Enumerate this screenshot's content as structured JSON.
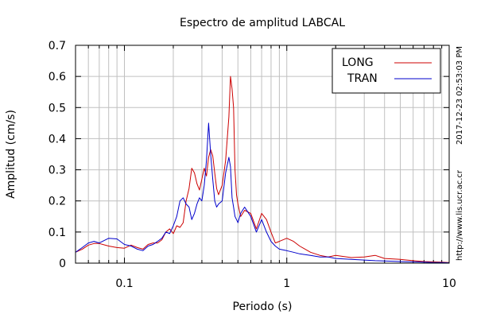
{
  "chart_data": {
    "type": "line",
    "title": "Espectro de amplitud LABCAL",
    "xlabel": "Periodo (s)",
    "ylabel": "Amplitud (cm/s)",
    "x_scale": "log",
    "xlim": [
      0.05,
      10
    ],
    "ylim": [
      0,
      0.7
    ],
    "grid": true,
    "legend": "top-right",
    "y_ticks": [
      "0",
      "0.1",
      "0.2",
      "0.3",
      "0.4",
      "0.5",
      "0.6",
      "0.7"
    ],
    "x_tick_values": [
      0.1,
      1,
      10
    ],
    "x_ticks": [
      "0.1",
      "1",
      "10"
    ],
    "timestamp": "2017-12-23 02:53:03 PM",
    "source_url": "http://www.lis.ucr.ac.cr",
    "series": [
      {
        "name": "LONG",
        "color": "#cc0000",
        "x": [
          0.05,
          0.055,
          0.06,
          0.065,
          0.07,
          0.08,
          0.09,
          0.1,
          0.11,
          0.12,
          0.13,
          0.14,
          0.15,
          0.16,
          0.17,
          0.18,
          0.19,
          0.2,
          0.21,
          0.22,
          0.23,
          0.24,
          0.25,
          0.26,
          0.27,
          0.28,
          0.29,
          0.3,
          0.31,
          0.32,
          0.33,
          0.34,
          0.35,
          0.36,
          0.37,
          0.38,
          0.4,
          0.42,
          0.44,
          0.45,
          0.46,
          0.47,
          0.48,
          0.49,
          0.5,
          0.52,
          0.55,
          0.6,
          0.65,
          0.7,
          0.75,
          0.8,
          0.85,
          0.9,
          1.0,
          1.1,
          1.2,
          1.4,
          1.6,
          1.8,
          2.0,
          2.5,
          3.0,
          3.5,
          4.0,
          5.0,
          6.0,
          7.0,
          8.0,
          9.0,
          10.0
        ],
        "values": [
          0.035,
          0.045,
          0.058,
          0.063,
          0.063,
          0.055,
          0.05,
          0.048,
          0.058,
          0.05,
          0.045,
          0.06,
          0.065,
          0.065,
          0.075,
          0.1,
          0.11,
          0.095,
          0.12,
          0.115,
          0.13,
          0.2,
          0.24,
          0.305,
          0.29,
          0.255,
          0.235,
          0.27,
          0.305,
          0.28,
          0.34,
          0.365,
          0.345,
          0.29,
          0.24,
          0.22,
          0.25,
          0.33,
          0.47,
          0.6,
          0.56,
          0.5,
          0.3,
          0.22,
          0.19,
          0.15,
          0.17,
          0.16,
          0.11,
          0.16,
          0.14,
          0.1,
          0.065,
          0.07,
          0.08,
          0.07,
          0.055,
          0.035,
          0.025,
          0.02,
          0.025,
          0.018,
          0.02,
          0.025,
          0.015,
          0.012,
          0.008,
          0.005,
          0.004,
          0.003,
          0.002
        ]
      },
      {
        "name": "TRAN",
        "color": "#0000cc",
        "x": [
          0.05,
          0.055,
          0.06,
          0.065,
          0.07,
          0.08,
          0.09,
          0.1,
          0.11,
          0.12,
          0.13,
          0.14,
          0.15,
          0.16,
          0.17,
          0.18,
          0.19,
          0.2,
          0.21,
          0.22,
          0.23,
          0.24,
          0.25,
          0.26,
          0.27,
          0.28,
          0.29,
          0.3,
          0.31,
          0.32,
          0.33,
          0.34,
          0.35,
          0.36,
          0.37,
          0.38,
          0.4,
          0.42,
          0.44,
          0.45,
          0.46,
          0.47,
          0.48,
          0.49,
          0.5,
          0.52,
          0.55,
          0.6,
          0.65,
          0.7,
          0.75,
          0.8,
          0.85,
          0.9,
          1.0,
          1.1,
          1.2,
          1.4,
          1.6,
          1.8,
          2.0,
          2.5,
          3.0,
          3.5,
          4.0,
          5.0,
          6.0,
          7.0,
          8.0,
          9.0,
          10.0
        ],
        "values": [
          0.035,
          0.05,
          0.065,
          0.07,
          0.065,
          0.08,
          0.078,
          0.06,
          0.055,
          0.045,
          0.04,
          0.055,
          0.06,
          0.07,
          0.08,
          0.1,
          0.095,
          0.12,
          0.15,
          0.2,
          0.21,
          0.19,
          0.18,
          0.14,
          0.16,
          0.19,
          0.21,
          0.2,
          0.25,
          0.33,
          0.45,
          0.35,
          0.27,
          0.2,
          0.18,
          0.19,
          0.2,
          0.29,
          0.34,
          0.31,
          0.21,
          0.18,
          0.15,
          0.14,
          0.13,
          0.16,
          0.18,
          0.15,
          0.1,
          0.14,
          0.1,
          0.07,
          0.055,
          0.045,
          0.04,
          0.035,
          0.03,
          0.025,
          0.02,
          0.02,
          0.015,
          0.012,
          0.01,
          0.008,
          0.007,
          0.005,
          0.004,
          0.003,
          0.002,
          0.002,
          0.001
        ]
      }
    ]
  }
}
